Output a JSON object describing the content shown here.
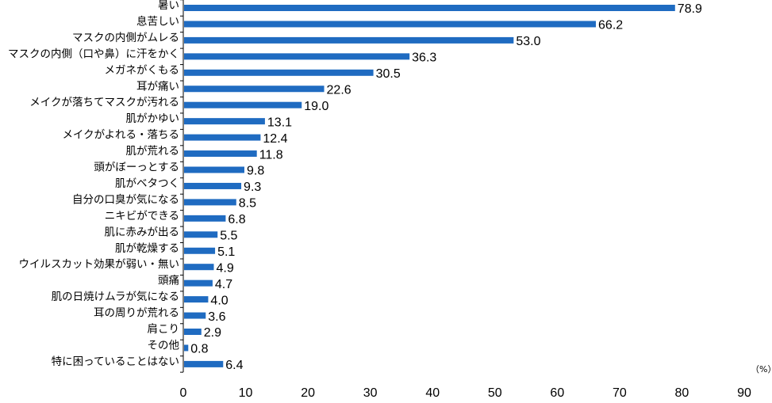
{
  "chart_data": {
    "type": "bar",
    "orientation": "horizontal",
    "title": "",
    "xlabel": "",
    "ylabel": "",
    "unit_label": "（%）",
    "categories": [
      "暑い",
      "息苦しい",
      "マスクの内側がムレる",
      "マスクの内側（口や鼻）に汗をかく",
      "メガネがくもる",
      "耳が痛い",
      "メイクが落ちてマスクが汚れる",
      "肌がかゆい",
      "メイクがよれる・落ちる",
      "肌が荒れる",
      "頭がぼーっとする",
      "肌がベタつく",
      "自分の口臭が気になる",
      "ニキビができる",
      "肌に赤みが出る",
      "肌が乾燥する",
      "ウイルスカット効果が弱い・無い",
      "頭痛",
      "肌の日焼けムラが気になる",
      "耳の周りが荒れる",
      "肩こり",
      "その他",
      "特に困っていることはない"
    ],
    "values": [
      78.9,
      66.2,
      53.0,
      36.3,
      30.5,
      22.6,
      19.0,
      13.1,
      12.4,
      11.8,
      9.8,
      9.3,
      8.5,
      6.8,
      5.5,
      5.1,
      4.9,
      4.7,
      4.0,
      3.6,
      2.9,
      0.8,
      6.4
    ],
    "value_labels": [
      "78.9",
      "66.2",
      "53.0",
      "36.3",
      "30.5",
      "22.6",
      "19.0",
      "13.1",
      "12.4",
      "11.8",
      "9.8",
      "9.3",
      "8.5",
      "6.8",
      "5.5",
      "5.1",
      "4.9",
      "4.7",
      "4.0",
      "3.6",
      "2.9",
      "0.8",
      "6.4"
    ],
    "xlim": [
      0,
      90
    ],
    "xticks": [
      0,
      10,
      20,
      30,
      40,
      50,
      60,
      70,
      80,
      90
    ],
    "grid": false,
    "legend": "none",
    "bar_color": "#1f6bc1",
    "axis_color": "#000000"
  }
}
